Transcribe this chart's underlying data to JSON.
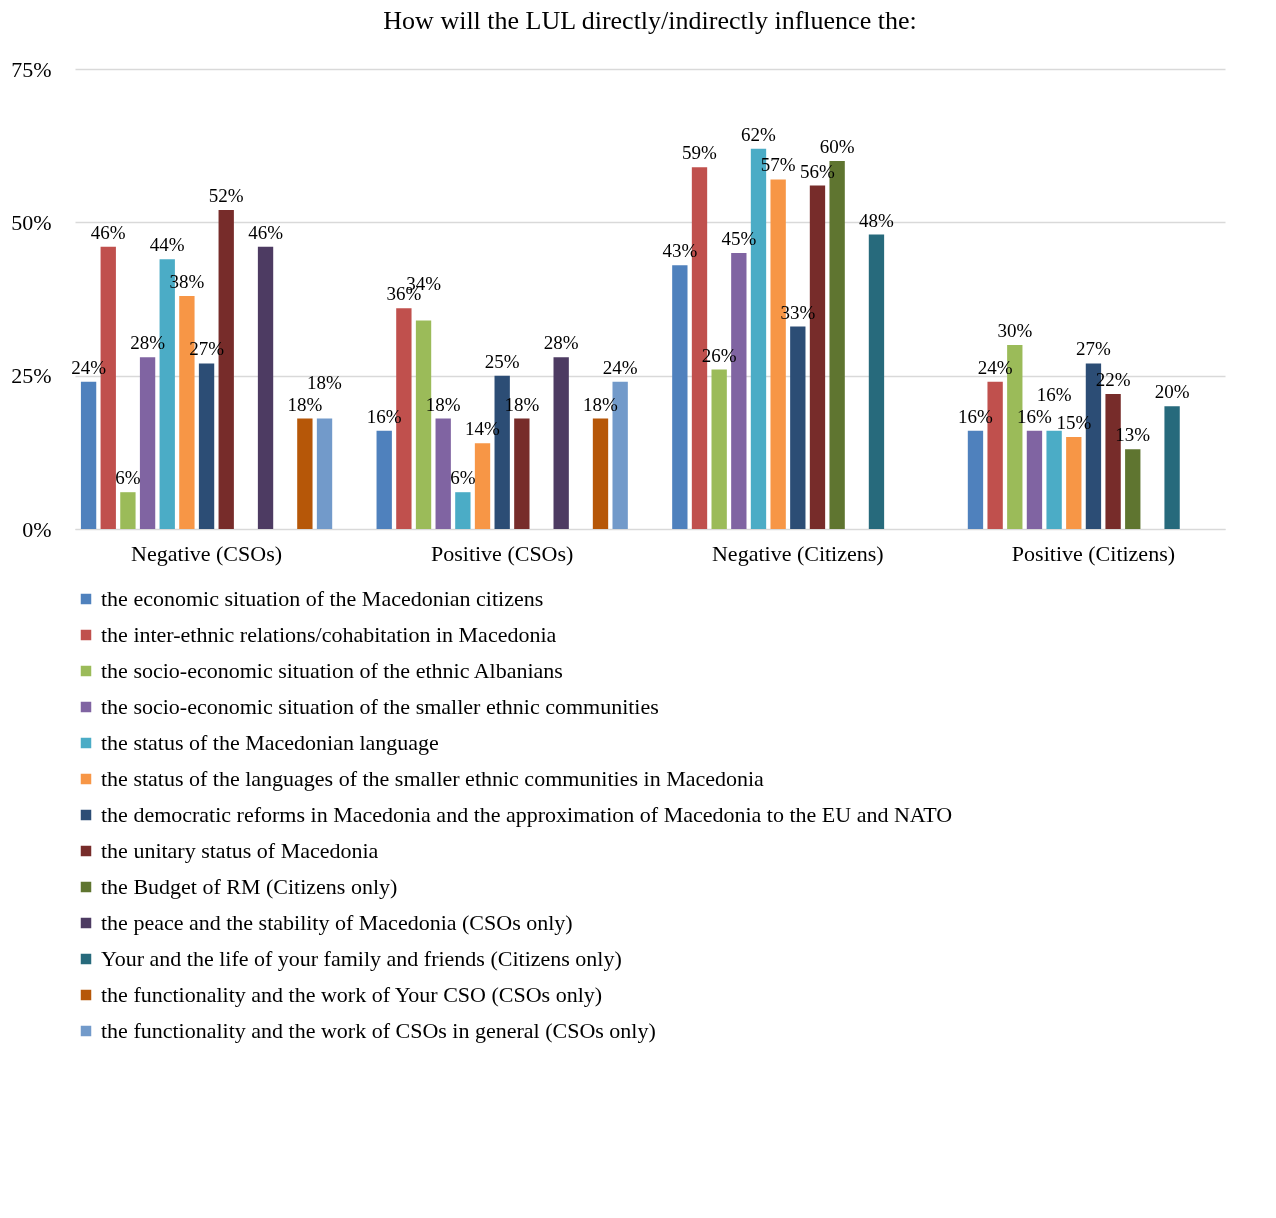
{
  "chart_data": {
    "type": "bar",
    "title": "How will the LUL directly/indirectly influence the:",
    "categories": [
      "Negative (CSOs)",
      "Positive (CSOs)",
      "Negative (Citizens)",
      "Positive (Citizens)"
    ],
    "ylim": [
      0,
      75
    ],
    "yticks": [
      {
        "value": 0,
        "label": "0%"
      },
      {
        "value": 25,
        "label": "25%"
      },
      {
        "value": 50,
        "label": "50%"
      },
      {
        "value": 75,
        "label": "75%"
      }
    ],
    "grid": "y",
    "legend": "bottom",
    "series": [
      {
        "name": "the economic situation of the Macedonian citizens",
        "color": "#4f81bd",
        "values": [
          24,
          16,
          43,
          16
        ],
        "value_labels": [
          "24%",
          "16%",
          "43%",
          "16%"
        ]
      },
      {
        "name": "the inter-ethnic relations/cohabitation in Macedonia",
        "color": "#c0504d",
        "values": [
          46,
          36,
          59,
          24
        ],
        "value_labels": [
          "46%",
          "36%",
          "59%",
          "24%"
        ]
      },
      {
        "name": "the socio-economic situation of the ethnic Albanians",
        "color": "#9bbb59",
        "values": [
          6,
          34,
          26,
          30
        ],
        "value_labels": [
          "6%",
          "34%",
          "26%",
          "30%"
        ]
      },
      {
        "name": "the socio-economic situation of the smaller ethnic communities",
        "color": "#8064a2",
        "values": [
          28,
          18,
          45,
          16
        ],
        "value_labels": [
          "28%",
          "18%",
          "45%",
          "16%"
        ]
      },
      {
        "name": "the status of the Macedonian language",
        "color": "#4bacc6",
        "values": [
          44,
          6,
          62,
          16
        ],
        "value_labels": [
          "44%",
          "6%",
          "62%",
          "16%"
        ]
      },
      {
        "name": "the status of the languages of the smaller ethnic communities in Macedonia",
        "color": "#f79646",
        "values": [
          38,
          14,
          57,
          15
        ],
        "value_labels": [
          "38%",
          "14%",
          "57%",
          "15%"
        ]
      },
      {
        "name": "the democratic reforms in Macedonia and the approximation of Macedonia to the EU and NATO",
        "color": "#2c4d75",
        "values": [
          27,
          25,
          33,
          27
        ],
        "value_labels": [
          "27%",
          "25%",
          "33%",
          "27%"
        ]
      },
      {
        "name": "the unitary status of Macedonia",
        "color": "#772c2a",
        "values": [
          52,
          18,
          56,
          22
        ],
        "value_labels": [
          "52%",
          "18%",
          "56%",
          "22%"
        ]
      },
      {
        "name": "the Budget of RM (Citizens only)",
        "color": "#5f7530",
        "values": [
          null,
          null,
          60,
          13
        ],
        "value_labels": [
          null,
          null,
          "60%",
          "13%"
        ]
      },
      {
        "name": "the peace and the stability of Macedonia (CSOs only)",
        "color": "#4d3b62",
        "values": [
          46,
          28,
          null,
          null
        ],
        "value_labels": [
          "46%",
          "28%",
          null,
          null
        ]
      },
      {
        "name": "Your and the life of your family and friends (Citizens only)",
        "color": "#276a7c",
        "values": [
          null,
          null,
          48,
          20
        ],
        "value_labels": [
          null,
          null,
          "48%",
          "20%"
        ]
      },
      {
        "name": "the functionality and the work of Your CSO  (CSOs only)",
        "color": "#b65708",
        "values": [
          18,
          18,
          null,
          null
        ],
        "value_labels": [
          "18%",
          "18%",
          null,
          null
        ]
      },
      {
        "name": "the functionality and the work of CSOs in general  (CSOs only)",
        "color": "#729aca",
        "values": [
          18,
          24,
          null,
          null
        ],
        "value_labels": [
          "18%",
          "24%",
          null,
          null
        ]
      }
    ]
  }
}
